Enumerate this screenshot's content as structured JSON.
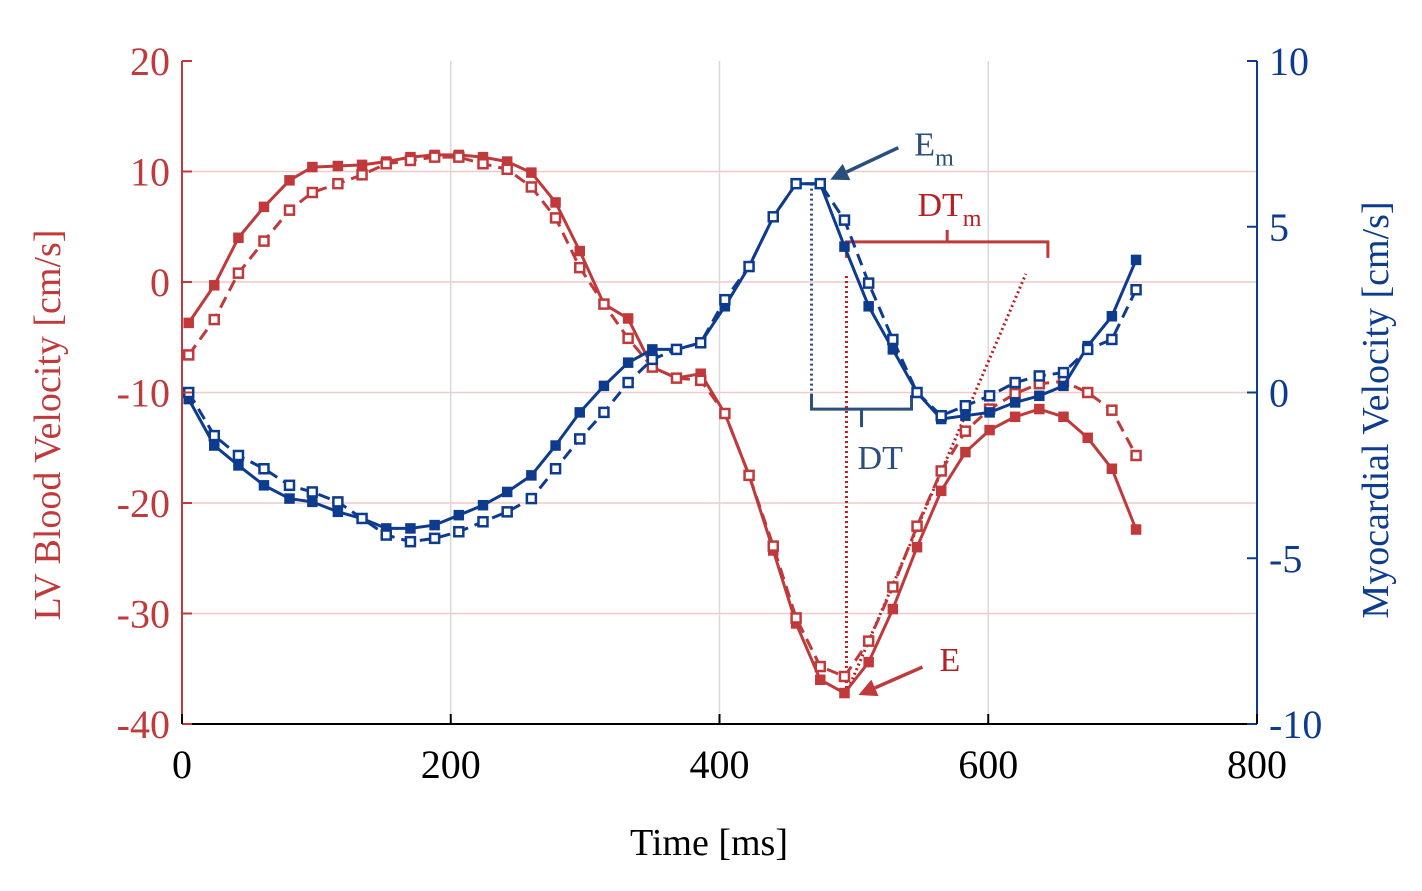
{
  "chart_data": {
    "type": "line",
    "title": "",
    "xlabel": "Time [ms]",
    "ylabel_left": "LV Blood Velocity [cm/s]",
    "ylabel_right": "Myocardial Velocity [cm/s]",
    "xlim": [
      0,
      800
    ],
    "ylim_left": [
      -40,
      20
    ],
    "ylim_right": [
      -10,
      10
    ],
    "x_ticks": [
      0,
      200,
      400,
      600,
      800
    ],
    "x_tick_labels": [
      "0",
      "200",
      "400",
      "600",
      "800"
    ],
    "y_left_ticks": [
      20,
      10,
      0,
      -10,
      -20,
      -30,
      -40
    ],
    "y_left_tick_labels": [
      "20",
      "10",
      "0",
      "-10",
      "-20",
      "-30",
      "-40"
    ],
    "y_right_ticks": [
      10,
      5,
      0,
      -5,
      -10
    ],
    "y_right_tick_labels": [
      "10",
      "5",
      "0",
      "-5",
      "-10"
    ],
    "colors": {
      "red": "#c0393b",
      "blue": "#0d3b8e",
      "red_grid": "#f2c9c9",
      "gray_grid": "#d9d9d9",
      "annot_blue": "#2a4f7a",
      "annot_red": "#b52025"
    },
    "series": [
      {
        "name": "LV blood velocity (solid)",
        "axis": "left",
        "color": "#c0393b",
        "dash": "solid",
        "x": [
          5,
          24,
          42,
          61,
          80,
          97,
          116,
          134,
          152,
          170,
          188,
          206,
          224,
          242,
          260,
          278,
          296,
          314,
          332,
          350,
          368,
          386,
          404,
          422,
          440,
          457,
          475,
          493,
          511,
          529,
          547,
          565,
          583,
          601,
          620,
          638,
          656,
          674,
          692,
          710
        ],
        "values": [
          -3.7,
          -0.3,
          4.0,
          6.8,
          9.2,
          10.4,
          10.5,
          10.6,
          10.9,
          11.3,
          11.5,
          11.5,
          11.3,
          10.9,
          9.9,
          7.2,
          2.8,
          -2.0,
          -3.3,
          -7.7,
          -8.7,
          -8.3,
          -11.9,
          -17.5,
          -24.3,
          -30.9,
          -36.0,
          -37.2,
          -34.4,
          -29.6,
          -24.0,
          -18.9,
          -15.4,
          -13.4,
          -12.2,
          -11.5,
          -12.2,
          -14.1,
          -16.9,
          -22.4
        ]
      },
      {
        "name": "LV blood velocity (dashed)",
        "axis": "left",
        "color": "#c0393b",
        "dash": "dashed",
        "x": [
          5,
          24,
          42,
          61,
          80,
          97,
          116,
          134,
          152,
          170,
          188,
          206,
          224,
          242,
          260,
          278,
          296,
          314,
          332,
          350,
          368,
          386,
          404,
          422,
          440,
          457,
          475,
          493,
          511,
          529,
          547,
          565,
          583,
          601,
          620,
          638,
          656,
          674,
          692,
          710
        ],
        "values": [
          -6.6,
          -3.4,
          0.8,
          3.7,
          6.5,
          8.1,
          8.9,
          9.7,
          10.7,
          11.0,
          11.3,
          11.3,
          10.7,
          10.2,
          8.6,
          5.8,
          1.3,
          -2.0,
          -5.1,
          -7.7,
          -8.7,
          -8.9,
          -11.9,
          -17.5,
          -23.9,
          -30.4,
          -34.8,
          -35.7,
          -32.5,
          -27.6,
          -22.1,
          -17.1,
          -13.5,
          -11.5,
          -10.1,
          -9.2,
          -9.0,
          -10.0,
          -11.6,
          -15.7
        ]
      },
      {
        "name": "Myocardial velocity (solid)",
        "axis": "right",
        "color": "#0d3b8e",
        "dash": "solid",
        "x": [
          5,
          24,
          42,
          61,
          80,
          97,
          116,
          134,
          152,
          170,
          188,
          206,
          224,
          242,
          260,
          278,
          296,
          314,
          332,
          350,
          368,
          386,
          404,
          422,
          440,
          457,
          475,
          493,
          511,
          529,
          547,
          565,
          583,
          601,
          620,
          638,
          656,
          674,
          692,
          710
        ],
        "values": [
          -0.2,
          -1.6,
          -2.2,
          -2.8,
          -3.2,
          -3.3,
          -3.6,
          -3.8,
          -4.1,
          -4.1,
          -4.0,
          -3.7,
          -3.4,
          -3.0,
          -2.5,
          -1.6,
          -0.6,
          0.2,
          0.9,
          1.3,
          1.3,
          1.5,
          2.6,
          3.8,
          5.3,
          6.3,
          6.3,
          4.4,
          2.6,
          1.3,
          0.0,
          -0.8,
          -0.7,
          -0.6,
          -0.3,
          -0.1,
          0.2,
          1.4,
          2.3,
          4.0
        ]
      },
      {
        "name": "Myocardial velocity (dashed)",
        "axis": "right",
        "color": "#0d3b8e",
        "dash": "dashed",
        "x": [
          5,
          24,
          42,
          61,
          80,
          97,
          116,
          134,
          152,
          170,
          188,
          206,
          224,
          242,
          260,
          278,
          296,
          314,
          332,
          350,
          368,
          386,
          404,
          422,
          440,
          457,
          475,
          493,
          511,
          529,
          547,
          565,
          583,
          601,
          620,
          638,
          656,
          674,
          692,
          710
        ],
        "values": [
          0.0,
          -1.3,
          -1.9,
          -2.3,
          -2.8,
          -3.0,
          -3.3,
          -3.8,
          -4.3,
          -4.5,
          -4.4,
          -4.2,
          -3.9,
          -3.6,
          -3.2,
          -2.3,
          -1.4,
          -0.6,
          0.3,
          1.0,
          1.3,
          1.5,
          2.8,
          3.8,
          5.3,
          6.3,
          6.3,
          5.2,
          3.3,
          1.6,
          0.0,
          -0.7,
          -0.4,
          -0.1,
          0.3,
          0.5,
          0.6,
          1.3,
          1.6,
          3.1
        ]
      }
    ],
    "annotations": {
      "Em": {
        "label": "E",
        "sub": "m",
        "target": [
          475,
          6.3
        ]
      },
      "DTm": {
        "label": "DT",
        "sub": "m",
        "x_start": 493,
        "x_end": 628,
        "vertical_y": -37.2,
        "bracket_y": 2.0,
        "dotted_to": [
          628,
          0.2
        ]
      },
      "DT": {
        "label": "DT",
        "x_start": 467,
        "x_end": 548,
        "vertical_top": 6.3,
        "bracket_y": -11.5
      },
      "E": {
        "label": "E",
        "target": [
          493,
          -37.2
        ]
      }
    }
  }
}
